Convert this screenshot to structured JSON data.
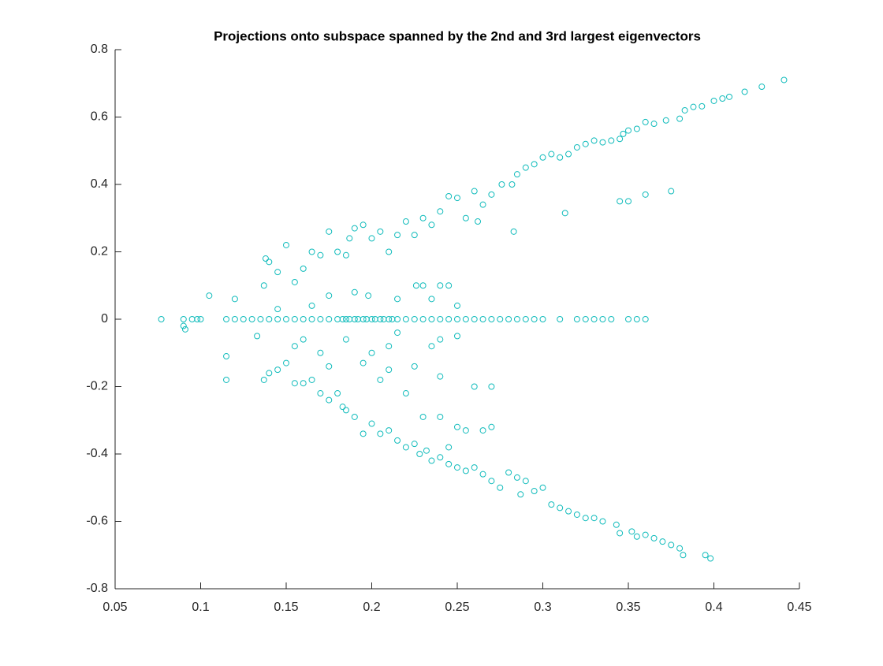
{
  "chart_data": {
    "type": "scatter",
    "title": "Projections onto subspace spanned by the 2nd and 3rd largest eigenvectors",
    "color": "#12bcbc",
    "xlim": [
      0.05,
      0.45
    ],
    "xticks": [
      0.05,
      0.1,
      0.15,
      0.2,
      0.25,
      0.3,
      0.35,
      0.4,
      0.45
    ],
    "ylim": [
      -0.8,
      0.8
    ],
    "yticks": [
      -0.8,
      -0.6,
      -0.4,
      -0.2,
      0,
      0.2,
      0.4,
      0.6,
      0.8
    ],
    "x": [
      0.441,
      0.428,
      0.418,
      0.409,
      0.405,
      0.4,
      0.393,
      0.388,
      0.383,
      0.38,
      0.372,
      0.365,
      0.36,
      0.355,
      0.35,
      0.347,
      0.345,
      0.34,
      0.335,
      0.33,
      0.325,
      0.32,
      0.315,
      0.31,
      0.305,
      0.3,
      0.295,
      0.29,
      0.285,
      0.282,
      0.276,
      0.27,
      0.265,
      0.26,
      0.255,
      0.25,
      0.245,
      0.24,
      0.235,
      0.23,
      0.225,
      0.22,
      0.215,
      0.21,
      0.205,
      0.2,
      0.195,
      0.19,
      0.187,
      0.185,
      0.18,
      0.175,
      0.17,
      0.165,
      0.16,
      0.155,
      0.15,
      0.145,
      0.14,
      0.138,
      0.137,
      0.345,
      0.35,
      0.36,
      0.375,
      0.313,
      0.283,
      0.262,
      0.105,
      0.12,
      0.23,
      0.24,
      0.226,
      0.245,
      0.19,
      0.198,
      0.215,
      0.175,
      0.165,
      0.145,
      0.25,
      0.235,
      0.398,
      0.395,
      0.382,
      0.38,
      0.375,
      0.37,
      0.365,
      0.36,
      0.355,
      0.352,
      0.345,
      0.343,
      0.335,
      0.33,
      0.325,
      0.32,
      0.315,
      0.31,
      0.305,
      0.3,
      0.295,
      0.29,
      0.287,
      0.285,
      0.28,
      0.275,
      0.27,
      0.265,
      0.26,
      0.255,
      0.25,
      0.245,
      0.24,
      0.235,
      0.232,
      0.228,
      0.225,
      0.22,
      0.215,
      0.21,
      0.205,
      0.2,
      0.195,
      0.19,
      0.185,
      0.183,
      0.18,
      0.175,
      0.17,
      0.165,
      0.16,
      0.155,
      0.15,
      0.145,
      0.14,
      0.137,
      0.133,
      0.115,
      0.115,
      0.09,
      0.091,
      0.26,
      0.27,
      0.265,
      0.27,
      0.255,
      0.25,
      0.245,
      0.24,
      0.23,
      0.22,
      0.225,
      0.24,
      0.205,
      0.21,
      0.2,
      0.195,
      0.185,
      0.17,
      0.175,
      0.16,
      0.155,
      0.24,
      0.235,
      0.215,
      0.21,
      0.25,
      0.077,
      0.09,
      0.095,
      0.098,
      0.1,
      0.115,
      0.12,
      0.125,
      0.13,
      0.135,
      0.14,
      0.145,
      0.15,
      0.155,
      0.16,
      0.165,
      0.17,
      0.175,
      0.18,
      0.185,
      0.19,
      0.195,
      0.2,
      0.205,
      0.21,
      0.215,
      0.22,
      0.225,
      0.23,
      0.235,
      0.24,
      0.245,
      0.25,
      0.255,
      0.26,
      0.265,
      0.27,
      0.275,
      0.28,
      0.285,
      0.29,
      0.295,
      0.3,
      0.31,
      0.32,
      0.325,
      0.33,
      0.335,
      0.34,
      0.35,
      0.355,
      0.36,
      0.183,
      0.187,
      0.192,
      0.197,
      0.202,
      0.207,
      0.212
    ],
    "values": [
      0.71,
      0.69,
      0.675,
      0.66,
      0.655,
      0.648,
      0.632,
      0.63,
      0.62,
      0.595,
      0.59,
      0.58,
      0.585,
      0.565,
      0.56,
      0.55,
      0.535,
      0.53,
      0.525,
      0.53,
      0.52,
      0.51,
      0.49,
      0.48,
      0.49,
      0.48,
      0.46,
      0.45,
      0.43,
      0.4,
      0.4,
      0.37,
      0.34,
      0.38,
      0.3,
      0.36,
      0.365,
      0.32,
      0.28,
      0.3,
      0.25,
      0.29,
      0.25,
      0.2,
      0.26,
      0.24,
      0.28,
      0.27,
      0.24,
      0.19,
      0.2,
      0.26,
      0.19,
      0.2,
      0.15,
      0.11,
      0.22,
      0.14,
      0.17,
      0.18,
      0.1,
      0.35,
      0.35,
      0.37,
      0.38,
      0.315,
      0.26,
      0.29,
      0.07,
      0.06,
      0.1,
      0.1,
      0.1,
      0.1,
      0.08,
      0.07,
      0.06,
      0.07,
      0.04,
      0.03,
      0.04,
      0.06,
      -0.71,
      -0.7,
      -0.7,
      -0.68,
      -0.67,
      -0.66,
      -0.65,
      -0.64,
      -0.645,
      -0.63,
      -0.635,
      -0.61,
      -0.6,
      -0.59,
      -0.59,
      -0.58,
      -0.57,
      -0.56,
      -0.55,
      -0.5,
      -0.51,
      -0.48,
      -0.52,
      -0.47,
      -0.455,
      -0.5,
      -0.48,
      -0.46,
      -0.44,
      -0.45,
      -0.44,
      -0.43,
      -0.41,
      -0.42,
      -0.39,
      -0.4,
      -0.37,
      -0.38,
      -0.36,
      -0.33,
      -0.34,
      -0.31,
      -0.34,
      -0.29,
      -0.27,
      -0.26,
      -0.22,
      -0.24,
      -0.22,
      -0.18,
      -0.19,
      -0.19,
      -0.13,
      -0.15,
      -0.16,
      -0.18,
      -0.05,
      -0.11,
      -0.18,
      -0.02,
      -0.03,
      -0.2,
      -0.2,
      -0.33,
      -0.32,
      -0.33,
      -0.32,
      -0.38,
      -0.29,
      -0.29,
      -0.22,
      -0.14,
      -0.17,
      -0.18,
      -0.15,
      -0.1,
      -0.13,
      -0.06,
      -0.1,
      -0.14,
      -0.06,
      -0.08,
      -0.06,
      -0.08,
      -0.04,
      -0.08,
      -0.05,
      0,
      0,
      0,
      0,
      0,
      0,
      0,
      0,
      0,
      0,
      0,
      0,
      0,
      0,
      0,
      0,
      0,
      0,
      0,
      0,
      0,
      0,
      0,
      0,
      0,
      0,
      0,
      0,
      0,
      0,
      0,
      0,
      0,
      0,
      0,
      0,
      0,
      0,
      0,
      0,
      0,
      0,
      0,
      0,
      0,
      0,
      0,
      0,
      0,
      0,
      0,
      0,
      0,
      0,
      0,
      0,
      0,
      0,
      0
    ]
  }
}
